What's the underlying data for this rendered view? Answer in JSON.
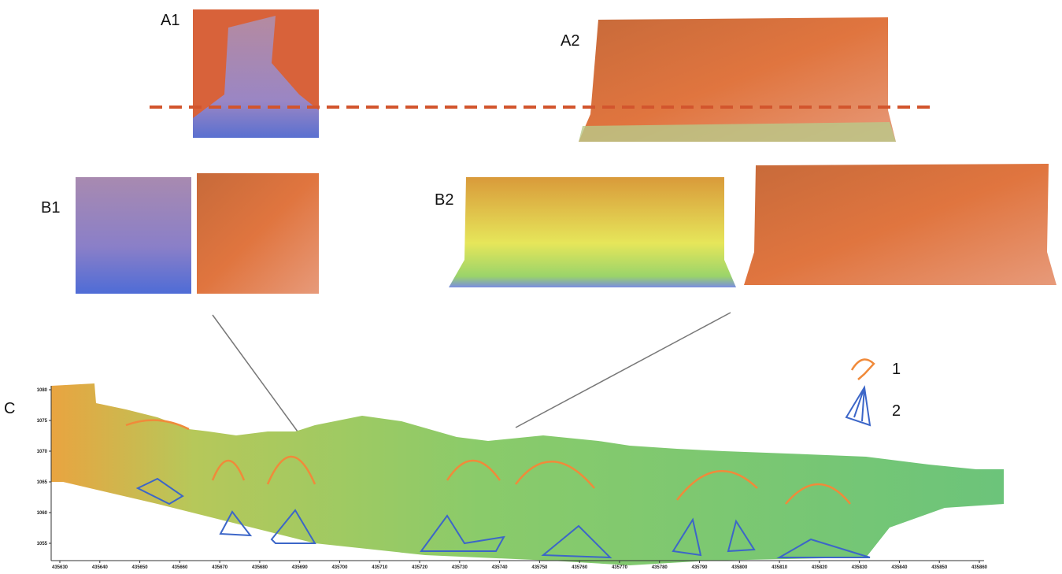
{
  "panels": {
    "a1": "A1",
    "a2": "A2",
    "b1": "B1",
    "b2": "B2",
    "c": "C"
  },
  "legend": [
    {
      "label": "1"
    },
    {
      "label": "2"
    }
  ],
  "axis": {
    "yticks": [
      1080,
      1075,
      1070,
      1065,
      1060,
      1055
    ],
    "xticks": [
      435630,
      435640,
      435650,
      435660,
      435670,
      435680,
      435690,
      435700,
      435710,
      435720,
      435730,
      435740,
      435750,
      435760,
      435770,
      435780,
      435790,
      435800,
      435810,
      435820,
      435830,
      435840,
      435850,
      435860
    ]
  }
}
